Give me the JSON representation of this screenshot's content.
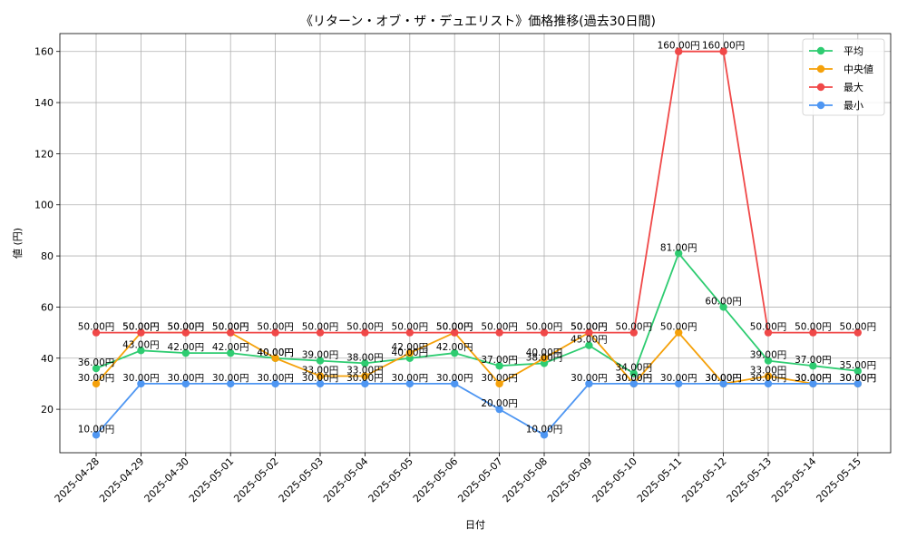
{
  "chart_data": {
    "type": "line",
    "title": "《リターン・オブ・ザ・デュエリスト》価格推移(過去30日間)",
    "xlabel": "日付",
    "ylabel": "値 (円)",
    "ylim": [
      3,
      167
    ],
    "yticks": [
      20,
      40,
      60,
      80,
      100,
      120,
      140,
      160
    ],
    "grid": true,
    "legend_position": "top-right",
    "label_suffix": "円",
    "categories": [
      "2025-04-28",
      "2025-04-29",
      "2025-04-30",
      "2025-05-01",
      "2025-05-02",
      "2025-05-03",
      "2025-05-04",
      "2025-05-05",
      "2025-05-06",
      "2025-05-07",
      "2025-05-08",
      "2025-05-09",
      "2025-05-10",
      "2025-05-11",
      "2025-05-12",
      "2025-05-13",
      "2025-05-14",
      "2025-05-15"
    ],
    "series": [
      {
        "name": "平均",
        "color": "#2ecc71",
        "values": [
          36,
          43,
          42,
          42,
          40,
          39,
          38,
          40,
          42,
          37,
          38,
          45,
          34,
          81,
          60,
          39,
          37,
          35
        ]
      },
      {
        "name": "中央値",
        "color": "#f5a10a",
        "values": [
          30,
          50,
          50,
          50,
          40,
          33,
          33,
          42,
          50,
          30,
          40,
          50,
          30,
          50,
          30,
          33,
          30,
          30
        ]
      },
      {
        "name": "最大",
        "color": "#f04848",
        "values": [
          50,
          50,
          50,
          50,
          50,
          50,
          50,
          50,
          50,
          50,
          50,
          50,
          50,
          160,
          160,
          50,
          50,
          50
        ]
      },
      {
        "name": "最小",
        "color": "#4e96f2",
        "values": [
          10,
          30,
          30,
          30,
          30,
          30,
          30,
          30,
          30,
          20,
          10,
          30,
          30,
          30,
          30,
          30,
          30,
          30
        ]
      }
    ]
  }
}
